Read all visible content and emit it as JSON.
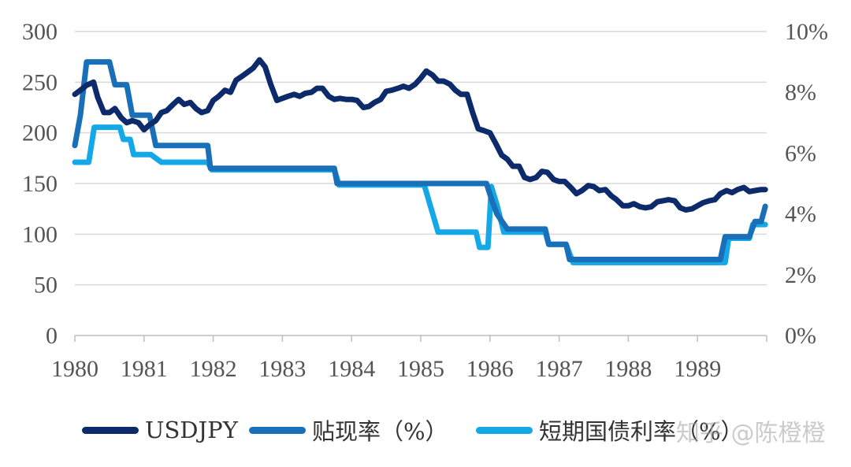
{
  "chart_data": {
    "type": "line",
    "xlim": [
      1980,
      1990
    ],
    "x_ticks": [
      "1980",
      "1981",
      "1982",
      "1983",
      "1984",
      "1985",
      "1986",
      "1987",
      "1988",
      "1989"
    ],
    "y_left": {
      "lim": [
        0,
        300
      ],
      "ticks": [
        "0",
        "50",
        "100",
        "150",
        "200",
        "250",
        "300"
      ]
    },
    "y_right": {
      "lim": [
        0,
        10
      ],
      "ticks": [
        "0%",
        "2%",
        "4%",
        "6%",
        "8%",
        "10%"
      ]
    },
    "grid": "horizontal",
    "legend": "bottom",
    "series": [
      {
        "name": "USDJPY",
        "axis": "left",
        "color": "#0d2a6b",
        "points": [
          [
            1980.0,
            238
          ],
          [
            1980.08,
            242
          ],
          [
            1980.17,
            247
          ],
          [
            1980.27,
            250
          ],
          [
            1980.33,
            235
          ],
          [
            1980.42,
            220
          ],
          [
            1980.5,
            220
          ],
          [
            1980.58,
            224
          ],
          [
            1980.67,
            215
          ],
          [
            1980.75,
            210
          ],
          [
            1980.83,
            212
          ],
          [
            1980.92,
            210
          ],
          [
            1981.0,
            203
          ],
          [
            1981.08,
            208
          ],
          [
            1981.17,
            212
          ],
          [
            1981.25,
            220
          ],
          [
            1981.33,
            222
          ],
          [
            1981.42,
            228
          ],
          [
            1981.5,
            233
          ],
          [
            1981.58,
            228
          ],
          [
            1981.67,
            230
          ],
          [
            1981.75,
            224
          ],
          [
            1981.83,
            220
          ],
          [
            1981.92,
            222
          ],
          [
            1982.0,
            232
          ],
          [
            1982.08,
            236
          ],
          [
            1982.17,
            242
          ],
          [
            1982.25,
            240
          ],
          [
            1982.33,
            252
          ],
          [
            1982.42,
            256
          ],
          [
            1982.5,
            260
          ],
          [
            1982.58,
            264
          ],
          [
            1982.67,
            272
          ],
          [
            1982.75,
            265
          ],
          [
            1982.83,
            248
          ],
          [
            1982.92,
            232
          ],
          [
            1983.0,
            234
          ],
          [
            1983.08,
            236
          ],
          [
            1983.17,
            238
          ],
          [
            1983.25,
            236
          ],
          [
            1983.33,
            239
          ],
          [
            1983.42,
            240
          ],
          [
            1983.5,
            244
          ],
          [
            1983.58,
            244
          ],
          [
            1983.67,
            236
          ],
          [
            1983.75,
            233
          ],
          [
            1983.83,
            234
          ],
          [
            1983.92,
            233
          ],
          [
            1984.0,
            233
          ],
          [
            1984.08,
            232
          ],
          [
            1984.17,
            225
          ],
          [
            1984.25,
            226
          ],
          [
            1984.33,
            230
          ],
          [
            1984.42,
            233
          ],
          [
            1984.5,
            241
          ],
          [
            1984.58,
            242
          ],
          [
            1984.67,
            244
          ],
          [
            1984.75,
            246
          ],
          [
            1984.83,
            244
          ],
          [
            1984.92,
            248
          ],
          [
            1985.0,
            254
          ],
          [
            1985.08,
            261
          ],
          [
            1985.17,
            257
          ],
          [
            1985.25,
            251
          ],
          [
            1985.33,
            251
          ],
          [
            1985.42,
            248
          ],
          [
            1985.5,
            242
          ],
          [
            1985.58,
            238
          ],
          [
            1985.67,
            238
          ],
          [
            1985.75,
            220
          ],
          [
            1985.83,
            204
          ],
          [
            1985.92,
            202
          ],
          [
            1986.0,
            200
          ],
          [
            1986.08,
            190
          ],
          [
            1986.17,
            178
          ],
          [
            1986.25,
            174
          ],
          [
            1986.33,
            167
          ],
          [
            1986.42,
            167
          ],
          [
            1986.5,
            156
          ],
          [
            1986.58,
            154
          ],
          [
            1986.67,
            156
          ],
          [
            1986.75,
            162
          ],
          [
            1986.83,
            161
          ],
          [
            1986.92,
            154
          ],
          [
            1987.0,
            152
          ],
          [
            1987.08,
            152
          ],
          [
            1987.17,
            146
          ],
          [
            1987.25,
            140
          ],
          [
            1987.33,
            143
          ],
          [
            1987.42,
            148
          ],
          [
            1987.5,
            147
          ],
          [
            1987.58,
            143
          ],
          [
            1987.67,
            144
          ],
          [
            1987.75,
            138
          ],
          [
            1987.83,
            134
          ],
          [
            1987.92,
            128
          ],
          [
            1988.0,
            128
          ],
          [
            1988.08,
            130
          ],
          [
            1988.17,
            127
          ],
          [
            1988.25,
            126
          ],
          [
            1988.33,
            127
          ],
          [
            1988.42,
            132
          ],
          [
            1988.5,
            133
          ],
          [
            1988.58,
            134
          ],
          [
            1988.67,
            133
          ],
          [
            1988.75,
            126
          ],
          [
            1988.83,
            124
          ],
          [
            1988.92,
            125
          ],
          [
            1989.0,
            128
          ],
          [
            1989.08,
            131
          ],
          [
            1989.17,
            133
          ],
          [
            1989.25,
            134
          ],
          [
            1989.33,
            140
          ],
          [
            1989.42,
            143
          ],
          [
            1989.5,
            141
          ],
          [
            1989.58,
            144
          ],
          [
            1989.67,
            146
          ],
          [
            1989.75,
            142
          ],
          [
            1989.83,
            143
          ],
          [
            1989.92,
            144
          ],
          [
            1989.98,
            144
          ]
        ]
      },
      {
        "name": "贴现率（%）",
        "axis": "right",
        "color": "#1a70b8",
        "points": [
          [
            1980.0,
            6.25
          ],
          [
            1980.08,
            7.25
          ],
          [
            1980.17,
            9.0
          ],
          [
            1980.5,
            9.0
          ],
          [
            1980.58,
            8.25
          ],
          [
            1980.75,
            8.25
          ],
          [
            1980.83,
            7.25
          ],
          [
            1981.0,
            7.25
          ],
          [
            1981.08,
            7.25
          ],
          [
            1981.17,
            6.25
          ],
          [
            1981.92,
            6.25
          ],
          [
            1981.96,
            5.5
          ],
          [
            1983.75,
            5.5
          ],
          [
            1983.79,
            5.0
          ],
          [
            1985.95,
            5.0
          ],
          [
            1986.02,
            4.5
          ],
          [
            1986.1,
            4.0
          ],
          [
            1986.25,
            3.5
          ],
          [
            1986.8,
            3.5
          ],
          [
            1986.85,
            3.0
          ],
          [
            1987.1,
            3.0
          ],
          [
            1987.15,
            2.5
          ],
          [
            1989.33,
            2.5
          ],
          [
            1989.4,
            3.25
          ],
          [
            1989.75,
            3.25
          ],
          [
            1989.83,
            3.75
          ],
          [
            1989.92,
            3.75
          ],
          [
            1989.98,
            4.25
          ]
        ]
      },
      {
        "name": "短期国债利率（%）",
        "axis": "right",
        "color": "#14a9e6",
        "points": [
          [
            1980.0,
            5.7
          ],
          [
            1980.2,
            5.7
          ],
          [
            1980.28,
            6.85
          ],
          [
            1980.65,
            6.85
          ],
          [
            1980.7,
            6.45
          ],
          [
            1980.8,
            6.45
          ],
          [
            1980.85,
            5.95
          ],
          [
            1981.1,
            5.95
          ],
          [
            1981.25,
            5.7
          ],
          [
            1981.92,
            5.7
          ],
          [
            1981.98,
            5.45
          ],
          [
            1983.75,
            5.45
          ],
          [
            1983.82,
            4.95
          ],
          [
            1985.05,
            4.95
          ],
          [
            1985.25,
            3.4
          ],
          [
            1985.8,
            3.4
          ],
          [
            1985.85,
            2.9
          ],
          [
            1985.97,
            2.9
          ],
          [
            1986.02,
            4.9
          ],
          [
            1986.1,
            4.3
          ],
          [
            1986.2,
            3.4
          ],
          [
            1986.8,
            3.4
          ],
          [
            1986.85,
            3.0
          ],
          [
            1987.1,
            3.0
          ],
          [
            1987.2,
            2.4
          ],
          [
            1989.4,
            2.4
          ],
          [
            1989.45,
            3.2
          ],
          [
            1989.75,
            3.2
          ],
          [
            1989.8,
            3.65
          ],
          [
            1989.98,
            3.65
          ]
        ]
      }
    ]
  },
  "legend": [
    {
      "label": "USDJPY",
      "color": "#0d2a6b"
    },
    {
      "label": "贴现率（%）",
      "color": "#1a70b8"
    },
    {
      "label": "短期国债利率（%）",
      "color": "#14a9e6"
    }
  ],
  "watermark": "知乎 @陈橙橙"
}
